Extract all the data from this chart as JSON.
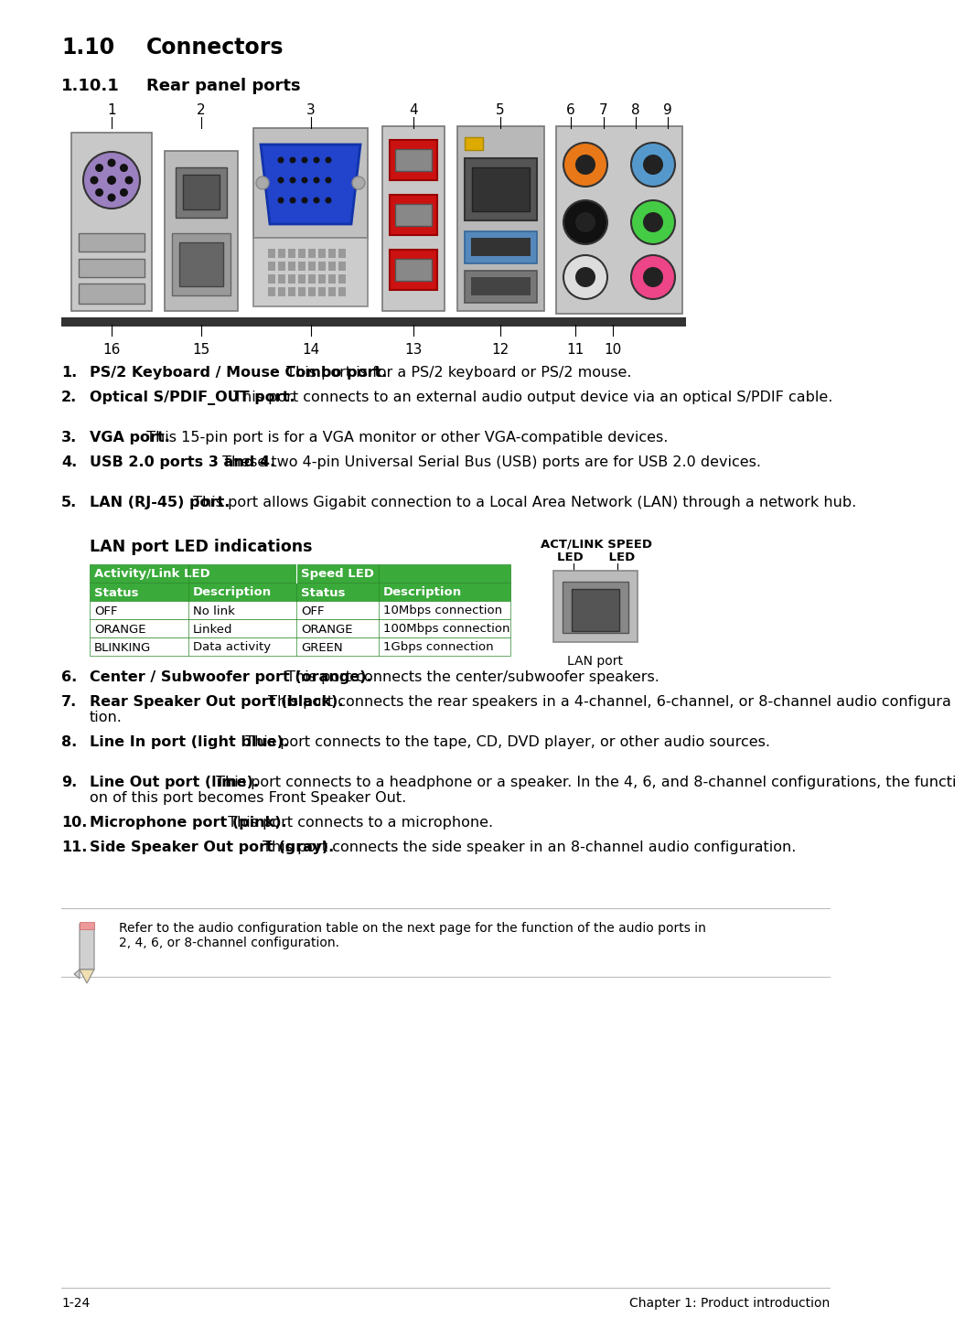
{
  "bg_color": "#ffffff",
  "title_num": "1.10",
  "title_text": "Connectors",
  "subtitle_num": "1.10.1",
  "subtitle_text": "Rear panel ports",
  "items": [
    {
      "num": "1.",
      "bold": "PS/2 Keyboard / Mouse Combo port.",
      "text": " This port is for a PS/2 keyboard or PS/2 mouse."
    },
    {
      "num": "2.",
      "bold": "Optical S/PDIF_OUT port.",
      "text": " This port connects to an external audio output device via an optical S/PDIF cable."
    },
    {
      "num": "3.",
      "bold": "VGA port.",
      "text": " This 15-pin port is for a VGA monitor or other VGA-compatible devices."
    },
    {
      "num": "4.",
      "bold": "USB 2.0 ports 3 and 4.",
      "text": " These two 4-pin Universal Serial Bus (USB) ports are for USB 2.0 devices."
    },
    {
      "num": "5.",
      "bold": "LAN (RJ-45) port.",
      "text": " This port allows Gigabit connection to a Local Area Network (LAN) through a network hub."
    },
    {
      "num": "6.",
      "bold": "Center / Subwoofer port (orange).",
      "text": " This port connects the center/subwoofer speakers."
    },
    {
      "num": "7.",
      "bold": "Rear Speaker Out port (black).",
      "text": " This port connects the rear speakers in a 4-channel, 6-channel, or 8-channel audio configuration."
    },
    {
      "num": "8.",
      "bold": "Line In port (light blue).",
      "text": " This port connects to the tape, CD, DVD player, or other audio sources."
    },
    {
      "num": "9.",
      "bold": "Line Out port (lime).",
      "text": " This port connects to a headphone or a speaker. In the 4, 6, and 8-channel configurations, the function of this port becomes Front Speaker Out."
    },
    {
      "num": "10.",
      "bold": "Microphone port (pink).",
      "text": " This port connects to a microphone."
    },
    {
      "num": "11.",
      "bold": "Side Speaker Out port (gray).",
      "text": " This port connects the side speaker in an 8-channel audio configuration."
    }
  ],
  "lan_table_title": "LAN port LED indications",
  "lan_table_rows": [
    [
      "OFF",
      "No link",
      "OFF",
      "10Mbps connection"
    ],
    [
      "ORANGE",
      "Linked",
      "ORANGE",
      "100Mbps connection"
    ],
    [
      "BLINKING",
      "Data activity",
      "GREEN",
      "1Gbps connection"
    ]
  ],
  "table_green": "#3aaa3a",
  "table_border": "#2a8a2a",
  "note_text": "Refer to the audio configuration table on the next page for the function of the audio ports in\n2, 4, 6, or 8-channel configuration.",
  "footer_left": "1-24",
  "footer_right": "Chapter 1: Product introduction"
}
